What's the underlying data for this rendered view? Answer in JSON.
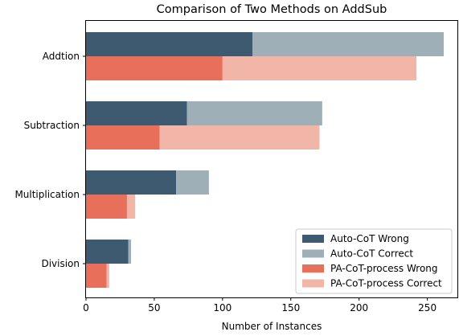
{
  "chart_data": {
    "type": "bar",
    "orientation": "horizontal",
    "stacked": true,
    "title": "Comparison of Two Methods on AddSub",
    "xlabel": "Number of Instances",
    "ylabel": "",
    "categories": [
      "Addtion",
      "Subtraction",
      "Multiplication",
      "Division"
    ],
    "xlim": [
      0,
      272
    ],
    "xticks": [
      0,
      50,
      100,
      150,
      200,
      250
    ],
    "grid": false,
    "legend_position": "lower-right",
    "series": [
      {
        "name": "Auto-CoT Wrong",
        "group": "Auto-CoT",
        "values": [
          122,
          74,
          66,
          31
        ],
        "color": "#3d5a70"
      },
      {
        "name": "Auto-CoT Correct",
        "group": "Auto-CoT",
        "values": [
          140,
          99,
          24,
          2
        ],
        "color": "#9eafb8"
      },
      {
        "name": "PA-CoT-process Wrong",
        "group": "PA-CoT-process",
        "values": [
          100,
          54,
          30,
          15
        ],
        "color": "#e8705a"
      },
      {
        "name": "PA-CoT-process Correct",
        "group": "PA-CoT-process",
        "values": [
          142,
          117,
          6,
          2
        ],
        "color": "#f1b6a8"
      }
    ]
  }
}
